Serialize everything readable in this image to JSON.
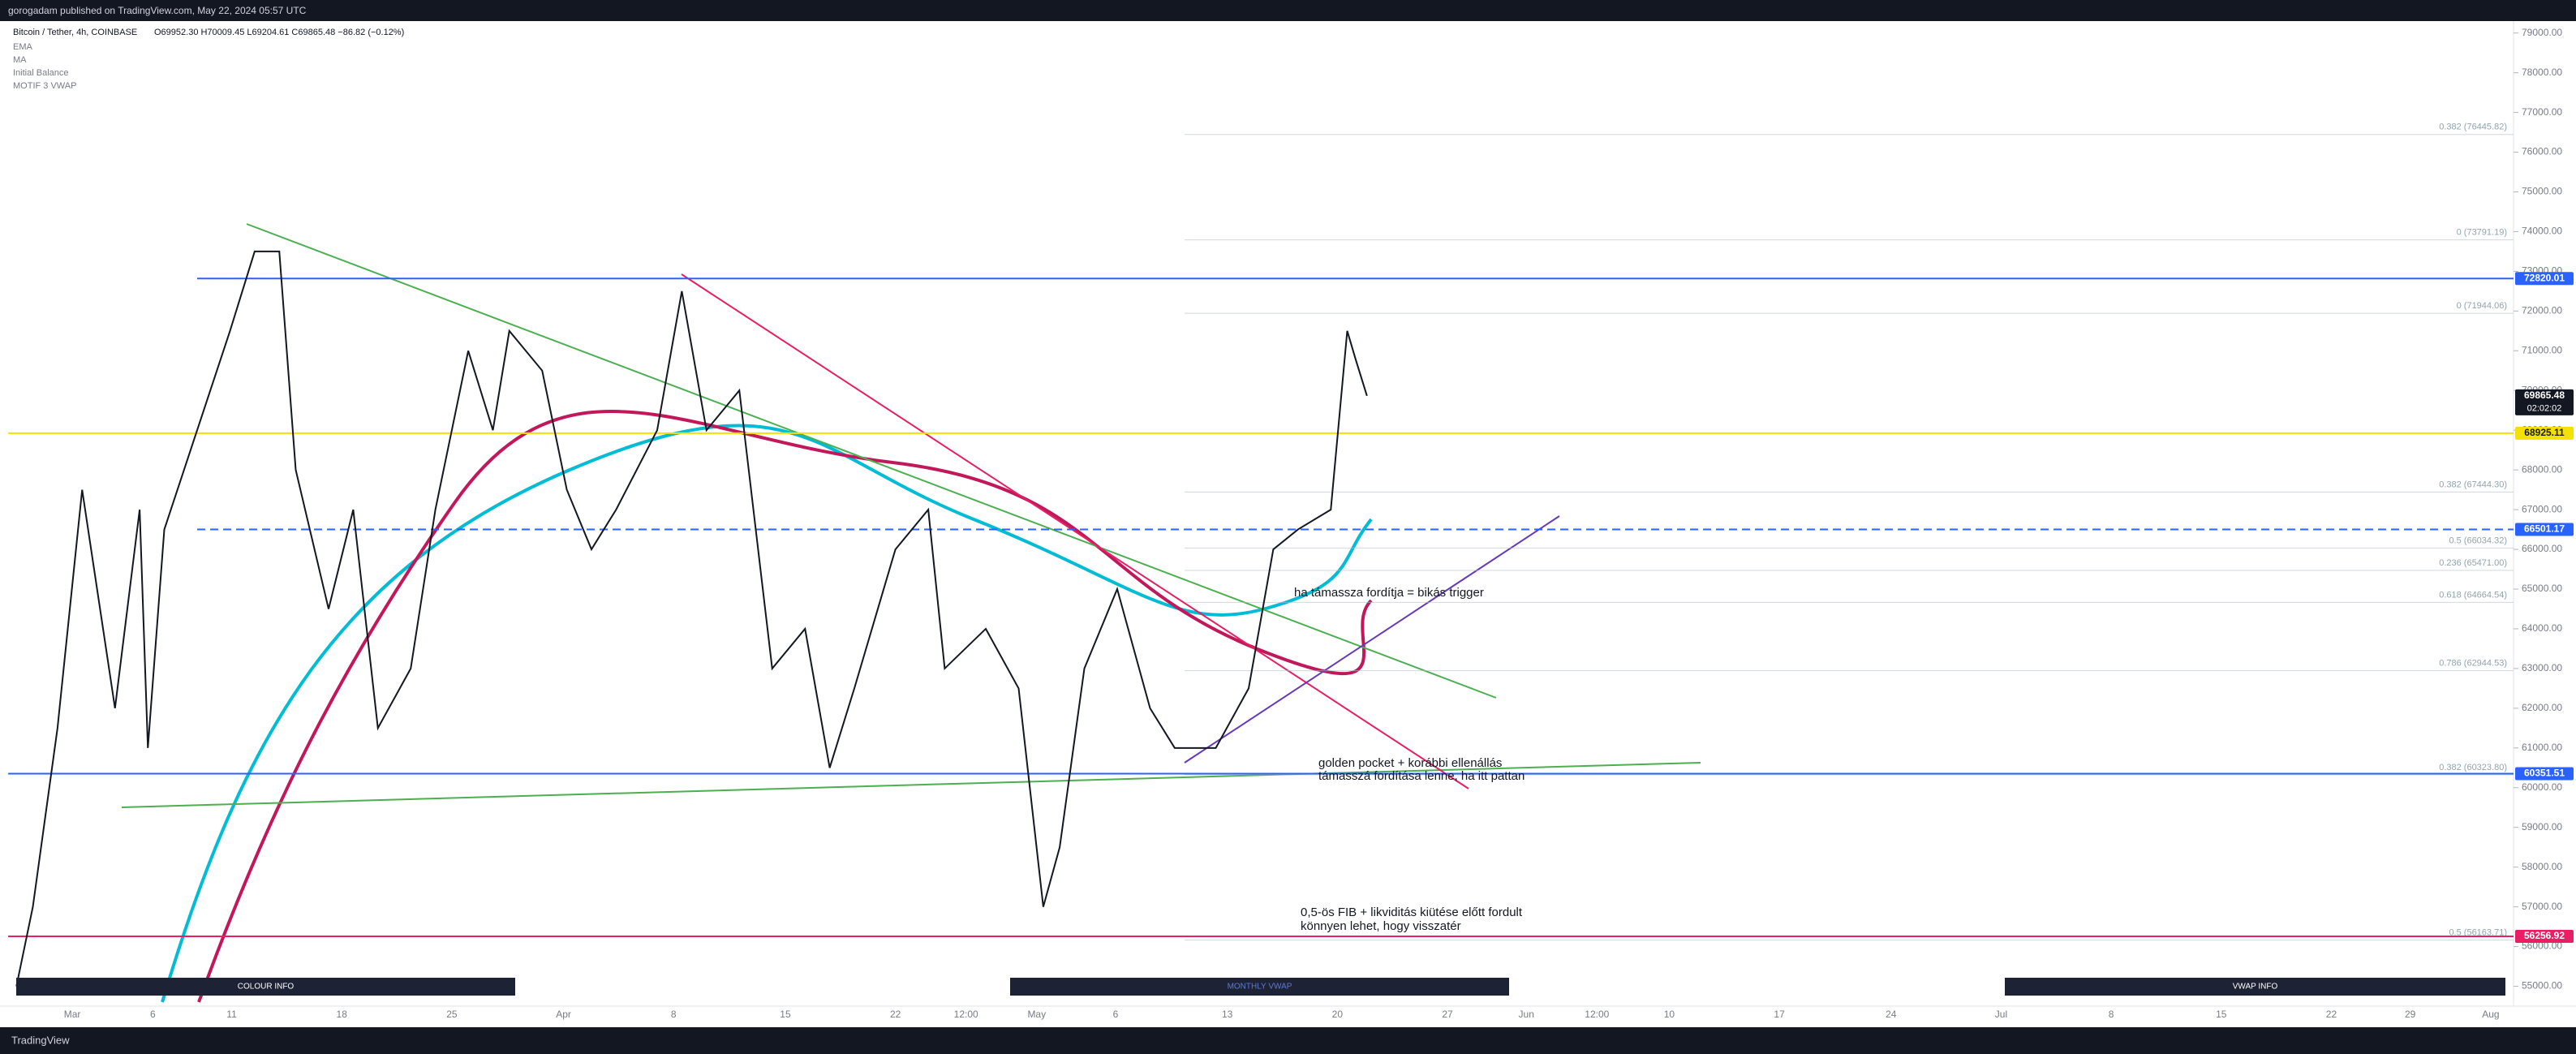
{
  "header": {
    "published": "gorogadam published on TradingView.com, May 22, 2024 05:57 UTC"
  },
  "legend": {
    "symbol": "Bitcoin / Tether, 4h, COINBASE",
    "ohlc": "O69952.30 H70009.45 L69204.61 C69865.48 −86.82 (−0.12%)",
    "indicators": [
      "EMA",
      "MA",
      "Initial Balance",
      "MOTIF 3 VWAP"
    ]
  },
  "chart_data": {
    "type": "line",
    "price_values": [
      55000,
      57000,
      61500,
      67500,
      62000,
      67000,
      61000,
      66500,
      69000,
      71500,
      73500,
      73500,
      68000,
      64500,
      67000,
      61500,
      63000,
      67000,
      71000,
      69000,
      71500,
      70500,
      67500,
      66000,
      67000,
      69000,
      72500,
      69000,
      70000,
      66500,
      63000,
      64000,
      60500,
      62500,
      66000,
      67000,
      63000,
      64000,
      62500,
      57000,
      58500,
      63000,
      65000,
      62000,
      61000,
      61000,
      62500,
      66000,
      66500,
      67000,
      71500,
      70800,
      69865.48
    ],
    "ylim": [
      54500,
      79300
    ],
    "yticks": [
      {
        "value": 55000,
        "label": "55000.00"
      },
      {
        "value": 56000,
        "label": "56000.00"
      },
      {
        "value": 57000,
        "label": "57000.00"
      },
      {
        "value": 58000,
        "label": "58000.00"
      },
      {
        "value": 59000,
        "label": "59000.00"
      },
      {
        "value": 60000,
        "label": "60000.00"
      },
      {
        "value": 61000,
        "label": "61000.00"
      },
      {
        "value": 62000,
        "label": "62000.00"
      },
      {
        "value": 63000,
        "label": "63000.00"
      },
      {
        "value": 64000,
        "label": "64000.00"
      },
      {
        "value": 65000,
        "label": "65000.00"
      },
      {
        "value": 66000,
        "label": "66000.00"
      },
      {
        "value": 67000,
        "label": "67000.00"
      },
      {
        "value": 68000,
        "label": "68000.00"
      },
      {
        "value": 69000,
        "label": "69000.00"
      },
      {
        "value": 70000,
        "label": "70000.00"
      },
      {
        "value": 71000,
        "label": "71000.00"
      },
      {
        "value": 72000,
        "label": "72000.00"
      },
      {
        "value": 73000,
        "label": "73000.00"
      },
      {
        "value": 74000,
        "label": "74000.00"
      },
      {
        "value": 75000,
        "label": "75000.00"
      },
      {
        "value": 76000,
        "label": "76000.00"
      },
      {
        "value": 77000,
        "label": "77000.00"
      },
      {
        "value": 78000,
        "label": "78000.00"
      },
      {
        "value": 79000,
        "label": "79000.00"
      }
    ],
    "xticks": [
      "Mar",
      "6",
      "11",
      "18",
      "25",
      "Apr",
      "8",
      "15",
      "22",
      "12:00",
      "May",
      "6",
      "13",
      "20",
      "27",
      "Jun",
      "12:00",
      "10",
      "17",
      "24",
      "Jul",
      "8",
      "15",
      "22",
      "29",
      "Aug"
    ],
    "levels": [
      {
        "value": 72820.01,
        "color": "#2962ff"
      },
      {
        "value": 69865.48,
        "color": "#131722"
      },
      {
        "value": 68925.11,
        "color": "#f5e100"
      },
      {
        "value": 66501.17,
        "color": "#2962ff"
      },
      {
        "value": 60351.51,
        "color": "#2962ff"
      },
      {
        "value": 56256.92,
        "color": "#e91e63"
      }
    ],
    "countdown": "02:02:02",
    "fib": [
      {
        "value": 76445.82,
        "label": "0.382 (76445.82)"
      },
      {
        "value": 73791.19,
        "label": "0 (73791.19)"
      },
      {
        "value": 71944.06,
        "label": "0 (71944.06)"
      },
      {
        "value": 67444.3,
        "label": "0.382 (67444.30)"
      },
      {
        "value": 66034.32,
        "label": "0.5 (66034.32)"
      },
      {
        "value": 65471.0,
        "label": "0.236 (65471.00)"
      },
      {
        "value": 64664.54,
        "label": "0.618 (64664.54)"
      },
      {
        "value": 62944.53,
        "label": "0.786 (62944.53)"
      },
      {
        "value": 60323.8,
        "label": "0.382 (60323.80)"
      },
      {
        "value": 56163.71,
        "label": "0.5 (56163.71)"
      }
    ]
  },
  "annotations": [
    "ha támassza fordítja = bikás trigger",
    "golden pocket + korábbi ellenállás",
    "támasszá fordítása lenne, ha itt pattan",
    "0,5-ös FIB + likviditás kiütése előtt fordult",
    "könnyen lehet, hogy visszatér"
  ],
  "panels": [
    "COLOUR INFO",
    "MONTHLY VWAP",
    "VWAP INFO"
  ],
  "footer": {
    "brand": "TradingView"
  }
}
